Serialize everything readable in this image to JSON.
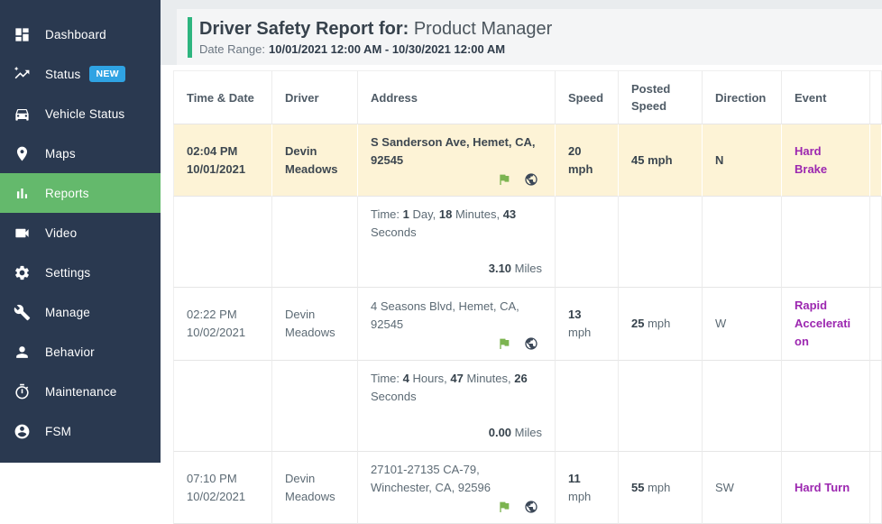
{
  "sidebar": {
    "items": [
      {
        "label": "Dashboard",
        "icon": "dashboard-icon",
        "active": false,
        "badge": null
      },
      {
        "label": "Status",
        "icon": "status-icon",
        "active": false,
        "badge": "NEW"
      },
      {
        "label": "Vehicle Status",
        "icon": "vehicle-icon",
        "active": false,
        "badge": null
      },
      {
        "label": "Maps",
        "icon": "maps-icon",
        "active": false,
        "badge": null
      },
      {
        "label": "Reports",
        "icon": "reports-icon",
        "active": true,
        "badge": null
      },
      {
        "label": "Video",
        "icon": "video-icon",
        "active": false,
        "badge": null
      },
      {
        "label": "Settings",
        "icon": "settings-icon",
        "active": false,
        "badge": null
      },
      {
        "label": "Manage",
        "icon": "manage-icon",
        "active": false,
        "badge": null
      },
      {
        "label": "Behavior",
        "icon": "behavior-icon",
        "active": false,
        "badge": null
      },
      {
        "label": "Maintenance",
        "icon": "maintenance-icon",
        "active": false,
        "badge": null
      },
      {
        "label": "FSM",
        "icon": "fsm-icon",
        "active": false,
        "badge": null
      }
    ],
    "colors": {
      "bg": "#2a3950",
      "active_bg": "#64b96c",
      "badge_bg": "#2fa3e3"
    }
  },
  "header": {
    "title_bold": "Driver Safety Report for:",
    "title_normal": "Product Manager",
    "date_range_label": "Date Range:",
    "date_range_value": "10/01/2021 12:00 AM - 10/30/2021 12:00 AM",
    "accent_color": "#2eb57f"
  },
  "table": {
    "columns": [
      "Time & Date",
      "Driver",
      "Address",
      "Speed",
      "Posted Speed",
      "Direction",
      "Event"
    ],
    "event_color": "#9c27b0",
    "highlight_color": "#fdf3d6",
    "address_icons": [
      "flag-icon",
      "globe-icon"
    ],
    "rows": [
      {
        "type": "event",
        "highlight": true,
        "time": "02:04 PM",
        "date": "10/01/2021",
        "driver": "Devin Meadows",
        "address": "S Sanderson Ave, Hemet, CA, 92545",
        "speed": "20",
        "speed_unit": "mph",
        "posted": "45",
        "posted_unit": "mph",
        "direction": "N",
        "event": "Hard Brake"
      },
      {
        "type": "summary",
        "segments": [
          {
            "t": "Time: ",
            "b": false
          },
          {
            "t": "1",
            "b": true
          },
          {
            "t": " Day, ",
            "b": false
          },
          {
            "t": "18",
            "b": true
          },
          {
            "t": " Minutes, ",
            "b": false
          },
          {
            "t": "43",
            "b": true
          },
          {
            "t": " Seconds",
            "b": false
          }
        ],
        "miles": "3.10",
        "miles_unit": " Miles"
      },
      {
        "type": "event",
        "highlight": false,
        "time": "02:22 PM",
        "date": "10/02/2021",
        "driver": "Devin Meadows",
        "address": "4 Seasons Blvd, Hemet, CA, 92545",
        "speed": "13",
        "speed_unit": "mph",
        "posted": "25",
        "posted_unit": "mph",
        "direction": "W",
        "event": "Rapid Acceleration"
      },
      {
        "type": "summary",
        "segments": [
          {
            "t": "Time: ",
            "b": false
          },
          {
            "t": "4",
            "b": true
          },
          {
            "t": " Hours, ",
            "b": false
          },
          {
            "t": "47",
            "b": true
          },
          {
            "t": " Minutes, ",
            "b": false
          },
          {
            "t": "26",
            "b": true
          },
          {
            "t": " Seconds",
            "b": false
          }
        ],
        "miles": "0.00",
        "miles_unit": " Miles"
      },
      {
        "type": "event",
        "highlight": false,
        "time": "07:10 PM",
        "date": "10/02/2021",
        "driver": "Devin Meadows",
        "address": "27101-27135 CA-79, Winchester, CA, 92596",
        "speed": "11",
        "speed_unit": "mph",
        "posted": "55",
        "posted_unit": "mph",
        "direction": "SW",
        "event": "Hard Turn"
      }
    ]
  }
}
